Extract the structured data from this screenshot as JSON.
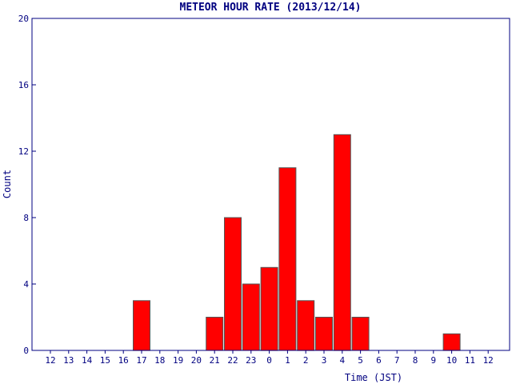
{
  "chart_data": {
    "type": "bar",
    "title": "METEOR HOUR RATE (2013/12/14)",
    "xlabel": "Time (JST)",
    "ylabel": "Count",
    "categories": [
      "12",
      "13",
      "14",
      "15",
      "16",
      "17",
      "18",
      "19",
      "20",
      "21",
      "22",
      "23",
      "0",
      "1",
      "2",
      "3",
      "4",
      "5",
      "6",
      "7",
      "8",
      "9",
      "10",
      "11",
      "12"
    ],
    "values": [
      0,
      0,
      0,
      0,
      0,
      3,
      0,
      0,
      0,
      2,
      8,
      4,
      5,
      11,
      3,
      2,
      13,
      2,
      0,
      0,
      0,
      0,
      1,
      0,
      0
    ],
    "ylim": [
      0,
      20
    ],
    "yticks": [
      0,
      4,
      8,
      12,
      16,
      20
    ],
    "grid": false,
    "colors": {
      "bar": "#ff0000",
      "bar_edge": "#555555",
      "axis": "#000080",
      "text": "#000080"
    }
  }
}
